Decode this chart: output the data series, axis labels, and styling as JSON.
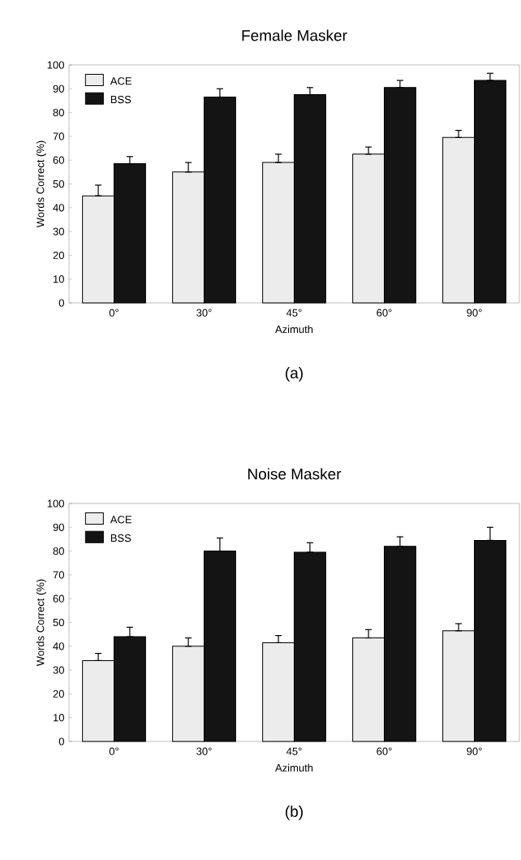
{
  "chart_data": [
    {
      "type": "bar",
      "title": "Female Masker",
      "xlabel": "Azimuth",
      "ylabel": "Words Correct (%)",
      "annotations": [
        "(a)"
      ],
      "categories": [
        "0°",
        "30°",
        "45°",
        "60°",
        "90°"
      ],
      "series": [
        {
          "name": "ACE",
          "color": "#ececec",
          "values": [
            45,
            55,
            59,
            62.5,
            69.5
          ],
          "errors": [
            [
              45,
              49.5
            ],
            [
              55,
              59
            ],
            [
              59,
              62.5
            ],
            [
              62.5,
              65.5
            ],
            [
              69.5,
              72.5
            ]
          ]
        },
        {
          "name": "BSS",
          "color": "#141414",
          "values": [
            58.5,
            86.5,
            87.5,
            90.5,
            93.5
          ],
          "errors": [
            [
              58.5,
              61.5
            ],
            [
              86.5,
              90
            ],
            [
              87.5,
              90.5
            ],
            [
              90.5,
              93.5
            ],
            [
              93.5,
              96.5
            ]
          ]
        }
      ],
      "ylim": [
        0,
        100
      ],
      "yticks": [
        0,
        10,
        20,
        30,
        40,
        50,
        60,
        70,
        80,
        90,
        100
      ],
      "grid": false,
      "legend": "top left"
    },
    {
      "type": "bar",
      "title": "Noise Masker",
      "xlabel": "Azimuth",
      "ylabel": "Words Correct (%)",
      "annotations": [
        "(b)"
      ],
      "categories": [
        "0°",
        "30°",
        "45°",
        "60°",
        "90°"
      ],
      "series": [
        {
          "name": "ACE",
          "color": "#ececec",
          "values": [
            34,
            40,
            41.5,
            43.5,
            46.5
          ],
          "errors": [
            [
              34,
              37
            ],
            [
              40,
              43.5
            ],
            [
              41.5,
              44.5
            ],
            [
              43.5,
              47
            ],
            [
              46.5,
              49.5
            ]
          ]
        },
        {
          "name": "BSS",
          "color": "#141414",
          "values": [
            44,
            80,
            79.5,
            82,
            84.5
          ],
          "errors": [
            [
              44,
              48
            ],
            [
              80,
              85.5
            ],
            [
              79.5,
              83.5
            ],
            [
              82,
              86
            ],
            [
              84.5,
              90
            ]
          ]
        }
      ],
      "ylim": [
        0,
        100
      ],
      "yticks": [
        0,
        10,
        20,
        30,
        40,
        50,
        60,
        70,
        80,
        90,
        100
      ],
      "grid": false,
      "legend": "top left"
    }
  ]
}
